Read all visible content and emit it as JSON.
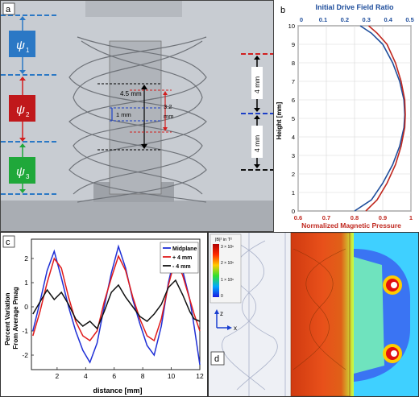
{
  "panel_a": {
    "label": "a",
    "psi1": "ψ",
    "psi1_sub": "1",
    "psi2": "ψ",
    "psi2_sub": "2",
    "psi3": "ψ",
    "psi3_sub": "3",
    "dim_outer": "4.5 mm",
    "dim_inner": "1 mm",
    "dim_height": "3.2",
    "dim_height_unit": "mm",
    "dim_upper": "4 mm",
    "dim_lower": "4 mm",
    "colors": {
      "psi1": "#2b78c5",
      "psi2": "#d21f1f",
      "psi3": "#1fa83a"
    }
  },
  "chart_data": [
    {
      "type": "line",
      "panel_label": "b",
      "title_top": "Initial Drive Field Ratio",
      "xlabel": "Normalized Magnetic Pressure",
      "ylabel": "Height [mm]",
      "top_ticks": [
        "0",
        "0.1",
        "0.2",
        "0.3",
        "0.4",
        "0.5"
      ],
      "bottom_ticks": [
        "0.6",
        "0.7",
        "0.8",
        "0.9",
        "1"
      ],
      "y_ticks": [
        "0",
        "1",
        "2",
        "3",
        "4",
        "5",
        "6",
        "7",
        "8",
        "9",
        "10"
      ],
      "xlim": [
        0.6,
        1.0
      ],
      "ylim": [
        0,
        10
      ],
      "series": [
        {
          "color": "#1f4e9c",
          "points": [
            [
              0.8,
              0
            ],
            [
              0.86,
              0.6
            ],
            [
              0.9,
              1.5
            ],
            [
              0.935,
              2.5
            ],
            [
              0.96,
              3.5
            ],
            [
              0.975,
              4.5
            ],
            [
              0.978,
              5.2
            ],
            [
              0.975,
              6
            ],
            [
              0.96,
              7
            ],
            [
              0.935,
              8
            ],
            [
              0.9,
              9
            ],
            [
              0.86,
              9.6
            ],
            [
              0.82,
              10
            ]
          ]
        },
        {
          "color": "#c0281f",
          "points": [
            [
              0.84,
              0
            ],
            [
              0.88,
              0.6
            ],
            [
              0.915,
              1.5
            ],
            [
              0.945,
              2.5
            ],
            [
              0.965,
              3.5
            ],
            [
              0.978,
              4.5
            ],
            [
              0.98,
              5.2
            ],
            [
              0.978,
              6
            ],
            [
              0.965,
              7
            ],
            [
              0.945,
              8
            ],
            [
              0.915,
              9
            ],
            [
              0.88,
              9.6
            ],
            [
              0.85,
              10
            ]
          ]
        }
      ]
    },
    {
      "type": "line",
      "panel_label": "c",
      "xlabel": "distance [mm]",
      "ylabel": "Percent Variation\nFrom Average Pmag",
      "x_ticks": [
        "2",
        "4",
        "6",
        "8",
        "10",
        "12"
      ],
      "y_ticks": [
        "-2",
        "-1",
        "0",
        "1",
        "2"
      ],
      "xlim": [
        0.2,
        12
      ],
      "ylim": [
        -2.6,
        2.8
      ],
      "series": [
        {
          "name": "Midplane",
          "color": "#1f2fd6",
          "points": [
            [
              0.3,
              -1.0
            ],
            [
              0.8,
              0.2
            ],
            [
              1.3,
              1.5
            ],
            [
              1.8,
              2.3
            ],
            [
              2.3,
              1.2
            ],
            [
              2.8,
              0.0
            ],
            [
              3.3,
              -1.0
            ],
            [
              3.8,
              -1.8
            ],
            [
              4.3,
              -2.3
            ],
            [
              4.8,
              -1.5
            ],
            [
              5.3,
              0.0
            ],
            [
              5.8,
              1.4
            ],
            [
              6.3,
              2.5
            ],
            [
              6.8,
              1.6
            ],
            [
              7.3,
              0.3
            ],
            [
              7.8,
              -0.7
            ],
            [
              8.3,
              -1.6
            ],
            [
              8.8,
              -2.0
            ],
            [
              9.3,
              -0.8
            ],
            [
              9.8,
              1.0
            ],
            [
              10.3,
              2.3
            ],
            [
              10.8,
              1.5
            ],
            [
              11.3,
              0.3
            ],
            [
              11.6,
              -0.8
            ],
            [
              12.0,
              -2.4
            ]
          ]
        },
        {
          "name": "+ 4 mm",
          "color": "#e01b1b",
          "points": [
            [
              0.3,
              -1.2
            ],
            [
              0.8,
              -0.2
            ],
            [
              1.3,
              1.0
            ],
            [
              1.8,
              2.0
            ],
            [
              2.3,
              1.6
            ],
            [
              2.8,
              0.4
            ],
            [
              3.3,
              -0.6
            ],
            [
              3.8,
              -1.2
            ],
            [
              4.3,
              -1.4
            ],
            [
              4.8,
              -1.0
            ],
            [
              5.3,
              0.2
            ],
            [
              5.8,
              1.2
            ],
            [
              6.3,
              2.1
            ],
            [
              6.8,
              1.5
            ],
            [
              7.3,
              0.4
            ],
            [
              7.8,
              -0.5
            ],
            [
              8.3,
              -1.2
            ],
            [
              8.8,
              -1.4
            ],
            [
              9.3,
              -0.5
            ],
            [
              9.8,
              0.9
            ],
            [
              10.3,
              2.0
            ],
            [
              10.8,
              1.3
            ],
            [
              11.3,
              0.3
            ],
            [
              11.6,
              -0.3
            ],
            [
              12.0,
              -1.0
            ]
          ]
        },
        {
          "name": "- 4 mm",
          "color": "#111111",
          "points": [
            [
              0.3,
              -0.3
            ],
            [
              0.8,
              0.2
            ],
            [
              1.3,
              0.7
            ],
            [
              1.8,
              0.3
            ],
            [
              2.3,
              0.6
            ],
            [
              2.8,
              0.1
            ],
            [
              3.3,
              -0.5
            ],
            [
              3.8,
              -0.8
            ],
            [
              4.3,
              -0.6
            ],
            [
              4.8,
              -0.9
            ],
            [
              5.3,
              -0.2
            ],
            [
              5.8,
              0.6
            ],
            [
              6.3,
              0.9
            ],
            [
              6.8,
              0.4
            ],
            [
              7.3,
              0.0
            ],
            [
              7.8,
              -0.4
            ],
            [
              8.3,
              -0.6
            ],
            [
              8.8,
              -0.3
            ],
            [
              9.3,
              0.1
            ],
            [
              9.8,
              0.8
            ],
            [
              10.3,
              1.1
            ],
            [
              10.8,
              0.5
            ],
            [
              11.3,
              -0.2
            ],
            [
              11.6,
              -0.5
            ],
            [
              12.0,
              -0.6
            ]
          ]
        }
      ]
    }
  ],
  "panel_d": {
    "label": "d",
    "colorbar_title": "|B|² in T²",
    "colorbar_ticks": [
      "3 × 10⁶",
      "2 × 10⁶",
      "1 × 10⁶",
      "0"
    ],
    "axis_z": "z",
    "axis_x": "x"
  }
}
